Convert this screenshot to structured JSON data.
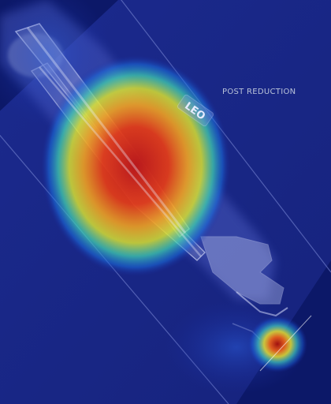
{
  "image": {
    "caption": "POST REDUCTION",
    "marker_text": "LEO"
  }
}
